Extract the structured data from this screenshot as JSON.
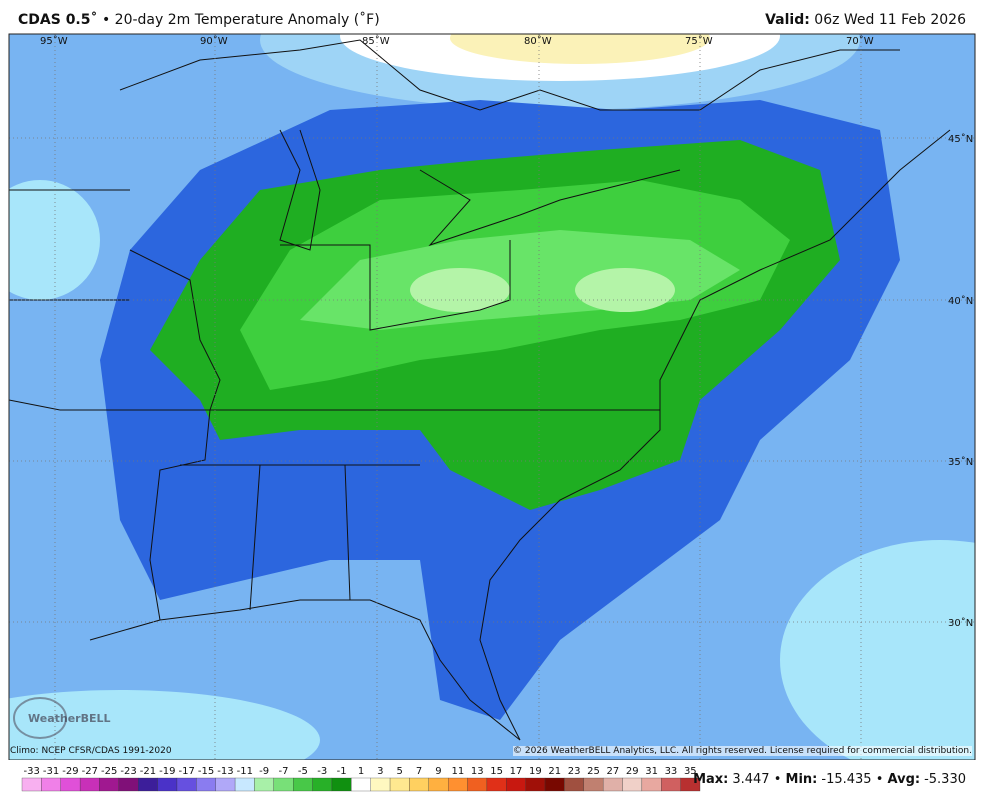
{
  "header": {
    "model": "CDAS 0.5˚",
    "title": "• 20-day 2m Temperature Anomaly (˚F)",
    "valid_label": "Valid:",
    "valid": "06z Wed 11 Feb 2026"
  },
  "map": {
    "longitudes": [
      "95˚W",
      "90˚W",
      "85˚W",
      "80˚W",
      "75˚W",
      "70˚W"
    ],
    "latitudes": [
      "45˚N",
      "40˚N",
      "35˚N",
      "30˚N"
    ],
    "climo": "Climo: NCEP CFSR/CDAS 1991-2020",
    "copyright": "© 2026 WeatherBELL Analytics, LLC. All rights reserved. License required for commercial distribution.",
    "logo": "WeatherBELL"
  },
  "colorbar": {
    "labels": [
      "-33",
      "-31",
      "-29",
      "-27",
      "-25",
      "-23",
      "-21",
      "-19",
      "-17",
      "-15",
      "-13",
      "-11",
      "-9",
      "-7",
      "-5",
      "-3",
      "-1",
      "1",
      "3",
      "5",
      "7",
      "9",
      "11",
      "13",
      "15",
      "17",
      "19",
      "21",
      "23",
      "25",
      "27",
      "29",
      "31",
      "33",
      "35"
    ]
  },
  "stats": [
    {
      "label": "Max:",
      "value": "3.447"
    },
    {
      "label": "Min:",
      "value": "-15.435"
    },
    {
      "label": "Avg:",
      "value": "-5.330"
    }
  ]
}
